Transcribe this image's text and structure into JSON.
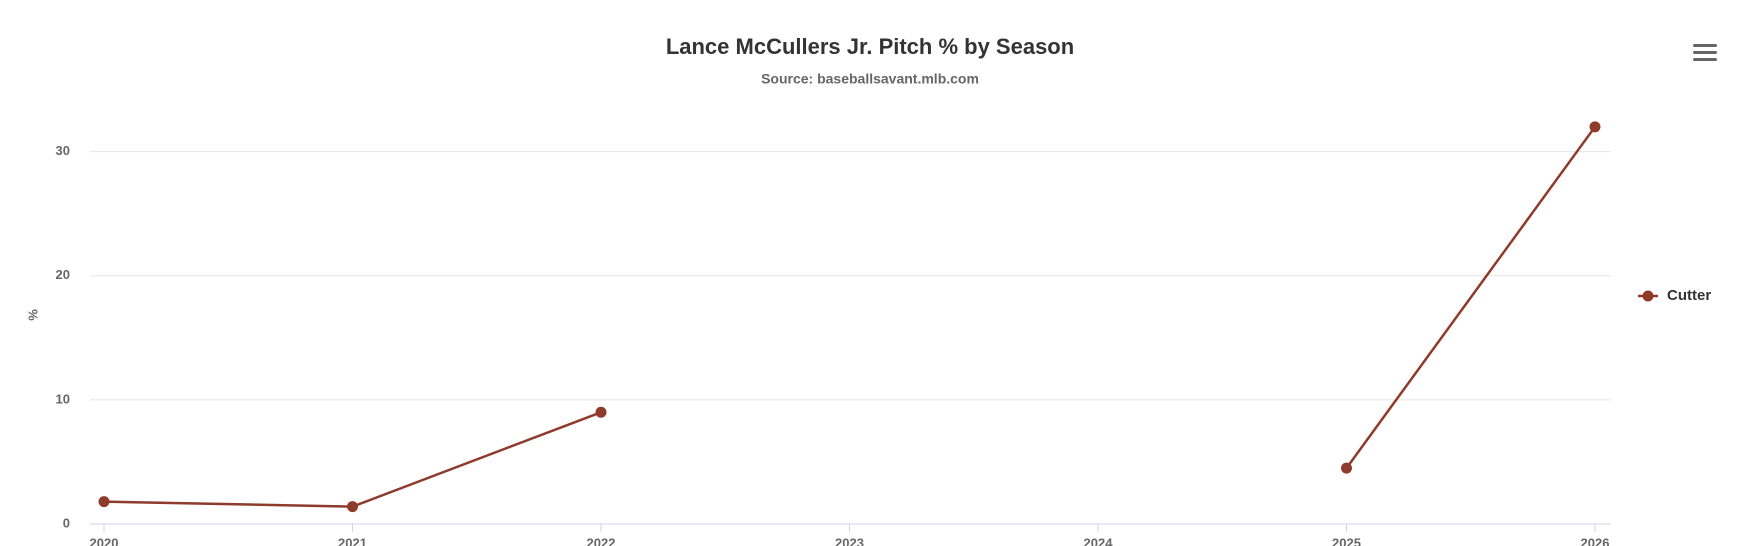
{
  "chart_data": {
    "type": "line",
    "title": "Lance McCullers Jr. Pitch % by Season",
    "subtitle": "Source: baseballsavant.mlb.com",
    "y_label": "%",
    "x": [
      2020,
      2021,
      2022,
      2023,
      2024,
      2025,
      2026
    ],
    "series": [
      {
        "name": "Cutter",
        "color": "#8e3b2c",
        "values": [
          1.8,
          1.4,
          9.0,
          null,
          null,
          4.5,
          32.0
        ]
      }
    ],
    "xlim": [
      2020,
      2026
    ],
    "xticks": [
      2020,
      2021,
      2022,
      2023,
      2024,
      2025,
      2026
    ],
    "ylim": [
      0,
      34
    ],
    "yticks": [
      0,
      10,
      20,
      30
    ],
    "grid": true,
    "legend": "right"
  }
}
